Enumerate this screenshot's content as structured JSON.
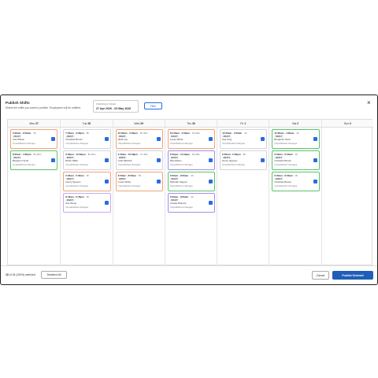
{
  "header": {
    "title": "Publish Shifts",
    "subtitle": "Select the shifts you want to publish. Employees will be notified.",
    "week_label": "Publishing for Week",
    "week_range": "27 Apr 2026 - 03 May 2026",
    "filter": "Filter",
    "close": "×"
  },
  "days": [
    {
      "name": "Mon",
      "date": "27",
      "shifts": [
        {
          "time": "2:00am - 6:00am",
          "duration": "4h",
          "status": "DRAFT",
          "employee": "Ana Wilson",
          "note": "Unpublished changes",
          "color": "#f0a37a"
        },
        {
          "time": "8:00am - 4:30pm",
          "duration": "8h 30m",
          "status": "DRAFT",
          "employee": "Benjamin Scott",
          "note": "Unpublished changes",
          "color": "#5cc46b"
        }
      ]
    },
    {
      "name": "Tue",
      "date": "28",
      "shifts": [
        {
          "time": "7:30am - 3:30pm",
          "duration": "8h",
          "status": "DRAFT",
          "employee": "Charlotte Brown",
          "note": "Unpublished changes",
          "color": "#d0d4da"
        },
        {
          "time": "2:00pm - 10:30pm",
          "duration": "8h 30m",
          "status": "DRAFT",
          "employee": "Ethan Miller",
          "note": "Unpublished changes",
          "color": "#d0d4da"
        },
        {
          "time": "2:30am - 5:30am",
          "duration": "3h",
          "status": "DRAFT",
          "employee": "Henry Nguyen",
          "note": "Unpublished changes",
          "color": "#f0a37a"
        },
        {
          "time": "8:45am - 5:45pm",
          "duration": "9h",
          "status": "DRAFT",
          "employee": "Zoe Wong",
          "note": "Unpublished changes",
          "color": "#c9a8f0"
        }
      ]
    },
    {
      "name": "Wed",
      "date": "29",
      "shifts": [
        {
          "time": "10:00am - 2:30pm",
          "duration": "4h 30m",
          "status": "DRAFT",
          "employee": "Mark Lee",
          "note": "Unpublished changes",
          "color": "#f0a37a"
        },
        {
          "time": "2:45pm - 10:30pm",
          "duration": "7h 45m",
          "status": "DRAFT",
          "employee": "Leah Mitchell",
          "note": "Unpublished changes",
          "color": "#d0d4da"
        },
        {
          "time": "3:00am - 8:00am",
          "duration": "5h",
          "status": "DRAFT",
          "employee": "Lucas White",
          "note": "Unpublished changes",
          "color": "#f0a37a"
        }
      ]
    },
    {
      "name": "Thu",
      "date": "30",
      "shifts": [
        {
          "time": "10:00am - 4:30pm",
          "duration": "6h 30m",
          "status": "DRAFT",
          "employee": "Lucas White",
          "note": "Unpublished changes",
          "color": "#f0a37a"
        },
        {
          "time": "2:30pm - 11:00pm",
          "duration": "8h 30m",
          "status": "DRAFT",
          "employee": "Mia Adams",
          "note": "Unpublished changes",
          "color": "#a58cf0"
        },
        {
          "time": "5:00am - 9:00am",
          "duration": "4h",
          "status": "DRAFT",
          "employee": "Michelle Nguyen",
          "note": "Unpublished changes",
          "color": "#5cc46b"
        },
        {
          "time": "5:00am - 9:00am",
          "duration": "4h",
          "status": "DRAFT",
          "employee": "Amelia Roberts",
          "note": "Unpublished changes",
          "color": "#a58cf0"
        }
      ]
    },
    {
      "name": "Fri",
      "date": "1",
      "shifts": [
        {
          "time": "12:00am - 4:00am",
          "duration": "4h",
          "status": "DRAFT",
          "employee": "Zoe King",
          "note": "Unpublished changes",
          "color": "#d0d4da"
        },
        {
          "time": "6:00am - 2:00pm",
          "duration": "8h",
          "status": "DRAFT",
          "employee": "Henry Nguyen",
          "note": "Unpublished changes",
          "color": "#d0d4da"
        }
      ]
    },
    {
      "name": "Sat",
      "date": "2",
      "shifts": [
        {
          "time": "12:00am - 4:00am",
          "duration": "4h",
          "status": "DRAFT",
          "employee": "Benjamin Scott",
          "note": "Unpublished changes",
          "color": "#5cc46b"
        },
        {
          "time": "2:00am - 6:00am",
          "duration": "4h",
          "status": "DRAFT",
          "employee": "Charlotte Brown",
          "note": "Unpublished changes",
          "color": "#5cc46b"
        },
        {
          "time": "6:00am - 9:00am",
          "duration": "3h",
          "status": "DRAFT",
          "employee": "Charlotte Brown",
          "note": "Unpublished changes",
          "color": "#5cc46b"
        }
      ]
    },
    {
      "name": "Sun",
      "date": "3",
      "shifts": []
    }
  ],
  "footer": {
    "selected": "18",
    "selected_text": "of 18 (100%) selected",
    "deselect": "Deselect All",
    "cancel": "Cancel",
    "publish": "Publish Selected"
  }
}
